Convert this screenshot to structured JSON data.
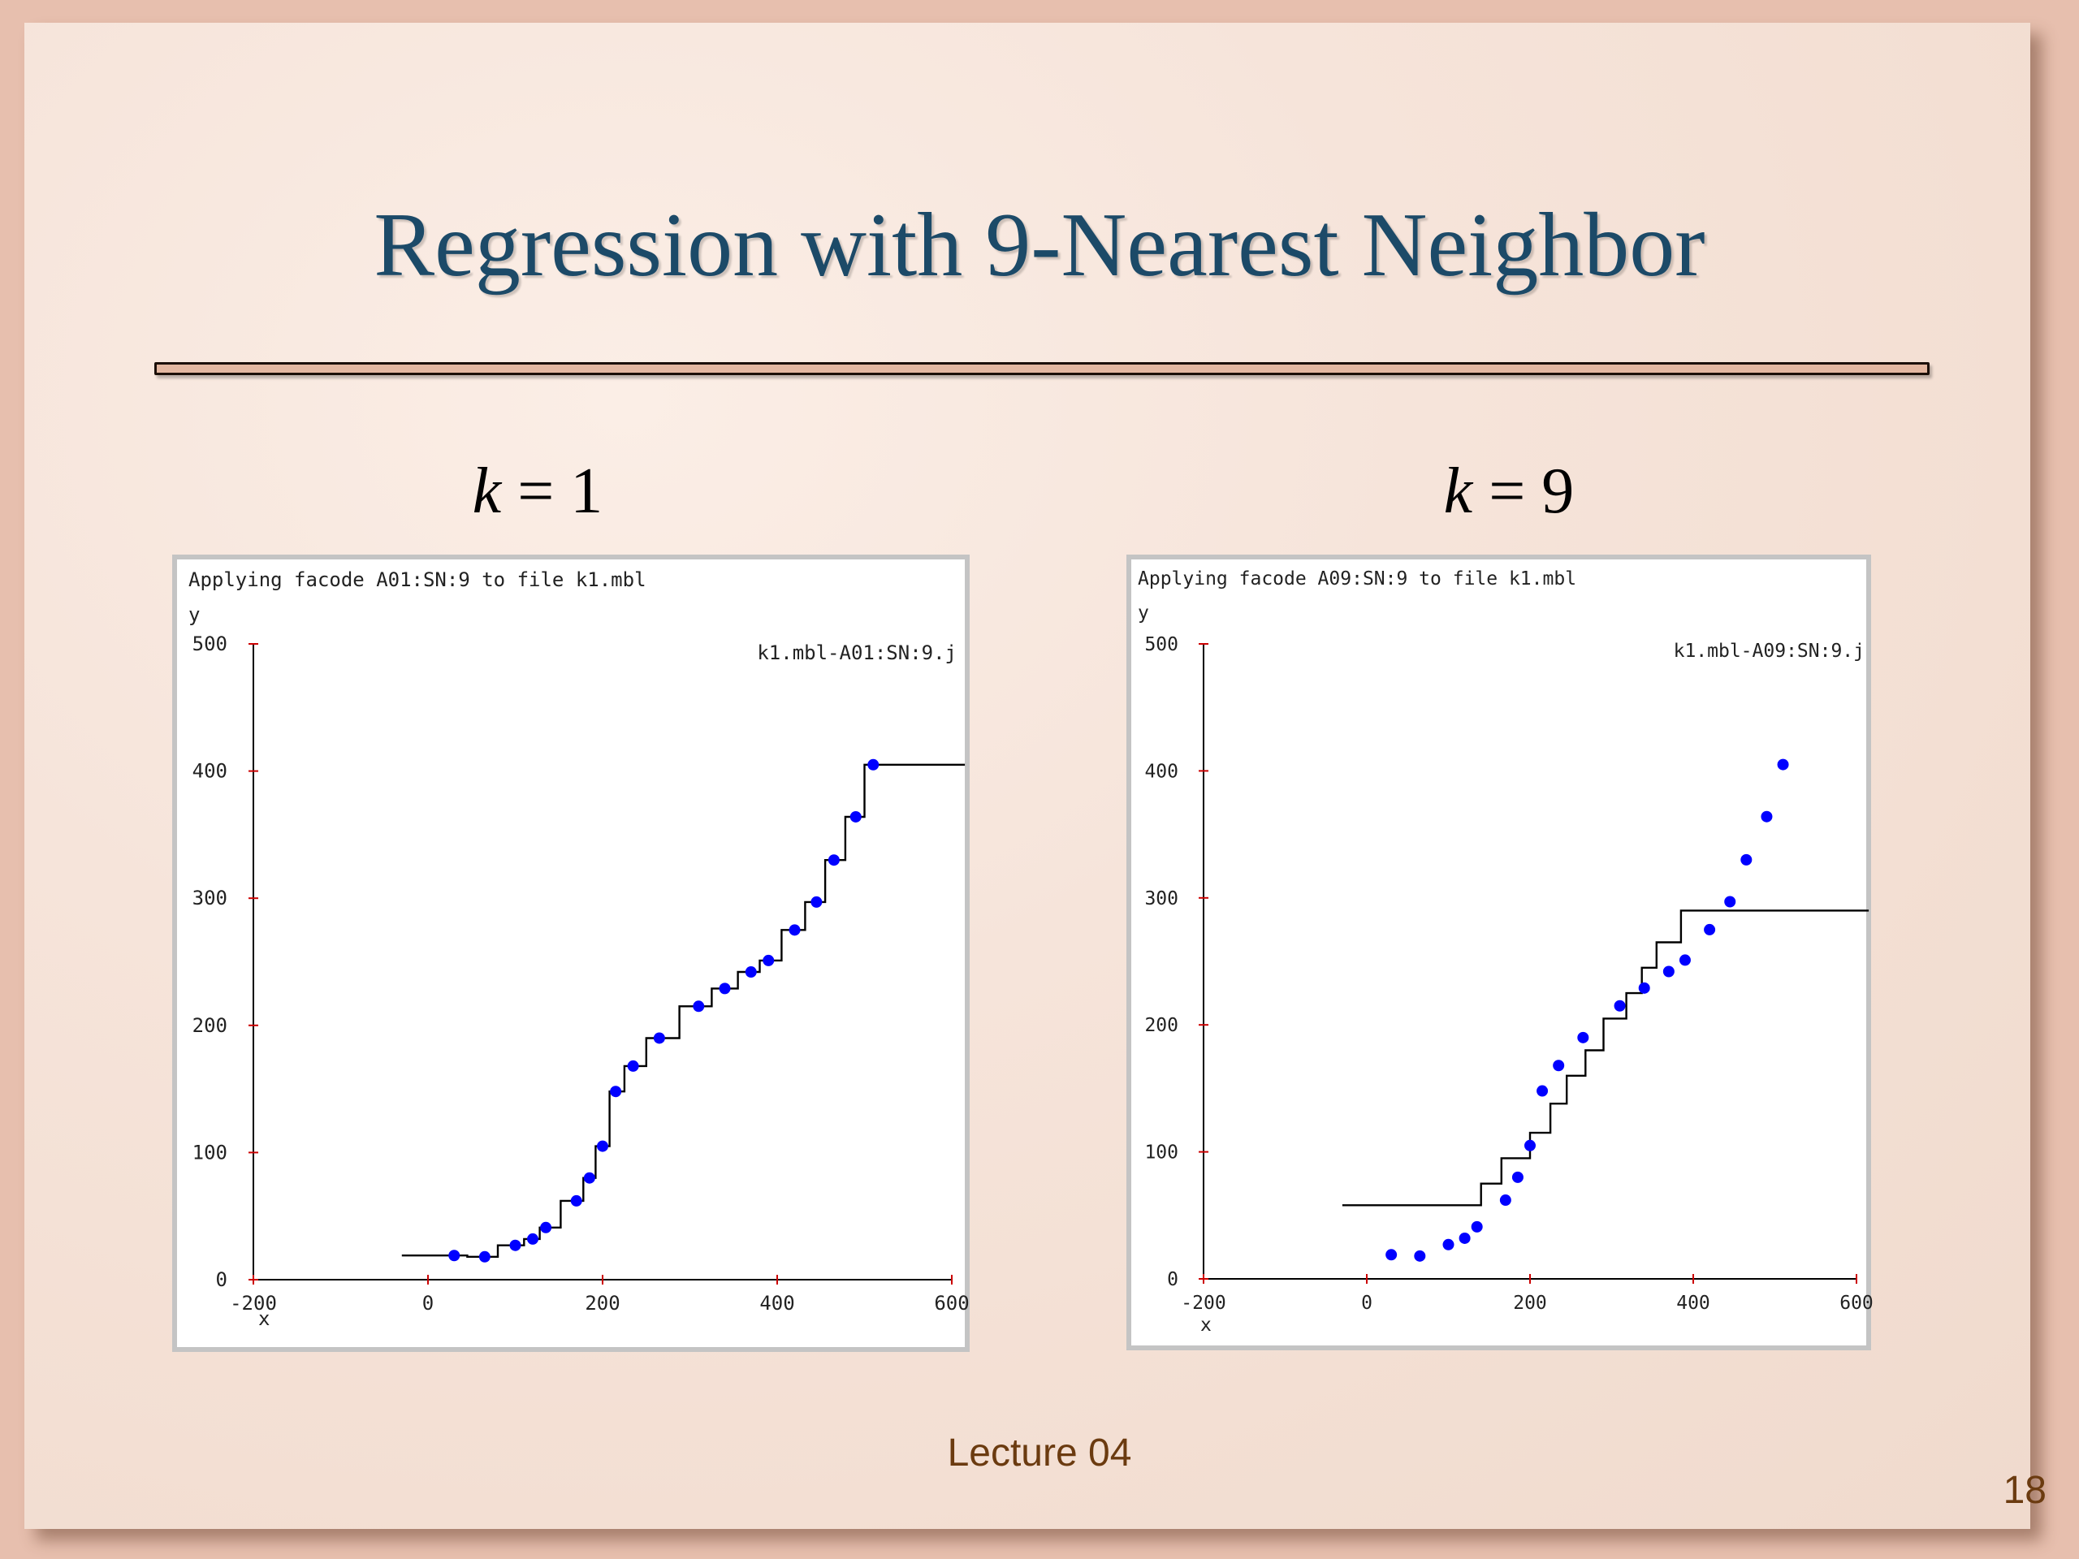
{
  "slide": {
    "title": "Regression with 9-Nearest Neighbor",
    "footer": "Lecture 04",
    "page_number": "18",
    "colors": {
      "title": "#1c4a68",
      "footer": "#6b3b10",
      "rule": "#e3b7a1",
      "points": "#0000ff",
      "fit": "#000000",
      "ticks": "#cc0000"
    }
  },
  "panels": [
    {
      "k_var": "k",
      "k_eq": " = 1"
    },
    {
      "k_var": "k",
      "k_eq": " = 9"
    }
  ],
  "chart_data": [
    {
      "type": "scatter",
      "header": "Applying facode A01:SN:9 to file k1.mbl",
      "ylabel": "y",
      "xlabel": "x",
      "legend": "k1.mbl-A01:SN:9.j",
      "legend_position": "top-right",
      "xlim": [
        -200,
        600
      ],
      "ylim": [
        0,
        500
      ],
      "xticks": [
        -200,
        0,
        200,
        400,
        600
      ],
      "yticks": [
        0,
        100,
        200,
        300,
        400,
        500
      ],
      "points": [
        [
          30,
          19
        ],
        [
          65,
          18
        ],
        [
          100,
          27
        ],
        [
          120,
          32
        ],
        [
          135,
          41
        ],
        [
          170,
          62
        ],
        [
          185,
          80
        ],
        [
          200,
          105
        ],
        [
          215,
          148
        ],
        [
          235,
          168
        ],
        [
          265,
          190
        ],
        [
          310,
          215
        ],
        [
          340,
          229
        ],
        [
          370,
          242
        ],
        [
          390,
          251
        ],
        [
          420,
          275
        ],
        [
          445,
          297
        ],
        [
          465,
          330
        ],
        [
          490,
          364
        ],
        [
          510,
          405
        ]
      ],
      "fit_step": [
        [
          -30,
          19
        ],
        [
          45,
          19
        ],
        [
          45,
          18
        ],
        [
          80,
          18
        ],
        [
          80,
          27
        ],
        [
          110,
          27
        ],
        [
          110,
          32
        ],
        [
          128,
          32
        ],
        [
          128,
          41
        ],
        [
          152,
          41
        ],
        [
          152,
          62
        ],
        [
          178,
          62
        ],
        [
          178,
          80
        ],
        [
          192,
          80
        ],
        [
          192,
          105
        ],
        [
          208,
          105
        ],
        [
          208,
          148
        ],
        [
          225,
          148
        ],
        [
          225,
          168
        ],
        [
          250,
          168
        ],
        [
          250,
          190
        ],
        [
          288,
          190
        ],
        [
          288,
          215
        ],
        [
          325,
          215
        ],
        [
          325,
          229
        ],
        [
          355,
          229
        ],
        [
          355,
          242
        ],
        [
          380,
          242
        ],
        [
          380,
          251
        ],
        [
          405,
          251
        ],
        [
          405,
          275
        ],
        [
          432,
          275
        ],
        [
          432,
          297
        ],
        [
          455,
          297
        ],
        [
          455,
          330
        ],
        [
          478,
          330
        ],
        [
          478,
          364
        ],
        [
          500,
          364
        ],
        [
          500,
          405
        ],
        [
          615,
          405
        ]
      ]
    },
    {
      "type": "scatter",
      "header": "Applying facode A09:SN:9 to file k1.mbl",
      "ylabel": "y",
      "xlabel": "x",
      "legend": "k1.mbl-A09:SN:9.j",
      "legend_position": "top-right",
      "xlim": [
        -200,
        600
      ],
      "ylim": [
        0,
        500
      ],
      "xticks": [
        -200,
        0,
        200,
        400,
        600
      ],
      "yticks": [
        0,
        100,
        200,
        300,
        400,
        500
      ],
      "points": [
        [
          30,
          19
        ],
        [
          65,
          18
        ],
        [
          100,
          27
        ],
        [
          120,
          32
        ],
        [
          135,
          41
        ],
        [
          170,
          62
        ],
        [
          185,
          80
        ],
        [
          200,
          105
        ],
        [
          215,
          148
        ],
        [
          235,
          168
        ],
        [
          265,
          190
        ],
        [
          310,
          215
        ],
        [
          340,
          229
        ],
        [
          370,
          242
        ],
        [
          390,
          251
        ],
        [
          420,
          275
        ],
        [
          445,
          297
        ],
        [
          465,
          330
        ],
        [
          490,
          364
        ],
        [
          510,
          405
        ]
      ],
      "fit_step": [
        [
          -30,
          58
        ],
        [
          140,
          58
        ],
        [
          140,
          75
        ],
        [
          165,
          75
        ],
        [
          165,
          95
        ],
        [
          200,
          95
        ],
        [
          200,
          115
        ],
        [
          225,
          115
        ],
        [
          225,
          138
        ],
        [
          245,
          138
        ],
        [
          245,
          160
        ],
        [
          268,
          160
        ],
        [
          268,
          180
        ],
        [
          290,
          180
        ],
        [
          290,
          205
        ],
        [
          318,
          205
        ],
        [
          318,
          225
        ],
        [
          337,
          225
        ],
        [
          337,
          245
        ],
        [
          355,
          245
        ],
        [
          355,
          265
        ],
        [
          385,
          265
        ],
        [
          385,
          290
        ],
        [
          615,
          290
        ]
      ]
    }
  ]
}
